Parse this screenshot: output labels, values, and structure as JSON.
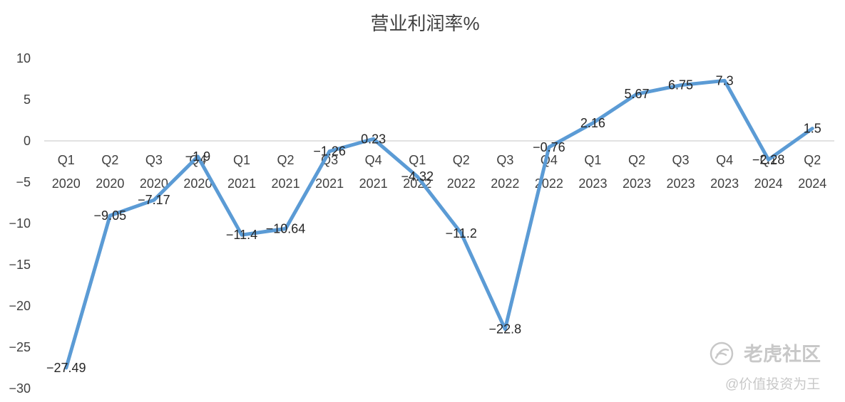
{
  "chart_data": {
    "type": "line",
    "title": "营业利润率%",
    "xlabel": "",
    "ylabel": "",
    "ylim": [
      -30,
      10
    ],
    "yticks": [
      10,
      5,
      0,
      -5,
      -10,
      -15,
      -20,
      -25,
      -30
    ],
    "ytick_labels": [
      "10",
      "5",
      "0",
      "−5",
      "−10",
      "−15",
      "−20",
      "−25",
      "−30"
    ],
    "categories": [
      [
        "Q1",
        "2020"
      ],
      [
        "Q2",
        "2020"
      ],
      [
        "Q3",
        "2020"
      ],
      [
        "Q4",
        "2020"
      ],
      [
        "Q1",
        "2021"
      ],
      [
        "Q2",
        "2021"
      ],
      [
        "Q3",
        "2021"
      ],
      [
        "Q4",
        "2021"
      ],
      [
        "Q1",
        "2022"
      ],
      [
        "Q2",
        "2022"
      ],
      [
        "Q3",
        "2022"
      ],
      [
        "Q4",
        "2022"
      ],
      [
        "Q1",
        "2023"
      ],
      [
        "Q2",
        "2023"
      ],
      [
        "Q3",
        "2023"
      ],
      [
        "Q4",
        "2023"
      ],
      [
        "Q1",
        "2024"
      ],
      [
        "Q2",
        "2024"
      ]
    ],
    "series": [
      {
        "values": [
          -27.49,
          -9.05,
          -7.17,
          -1.9,
          -11.4,
          -10.64,
          -1.26,
          0.23,
          -4.32,
          -11.2,
          -22.8,
          -0.76,
          2.16,
          5.67,
          6.75,
          7.3,
          -2.28,
          1.5
        ],
        "labels": [
          "−27.49",
          "−9.05",
          "−7.17",
          "−1.9",
          "−11.4",
          "−10.64",
          "−1.26",
          "0.23",
          "−4.32",
          "−11.2",
          "−22.8",
          "−0.76",
          "2.16",
          "5.67",
          "6.75",
          "7.3",
          "−2.28",
          "1.5"
        ],
        "color": "#5b9bd5"
      }
    ],
    "grid": false,
    "legend": "none",
    "axis_color": "#d9d9d9"
  },
  "watermark": {
    "brand": "老虎社区",
    "slogan": "@价值投资为王",
    "icon": "tiger-logo-icon"
  }
}
